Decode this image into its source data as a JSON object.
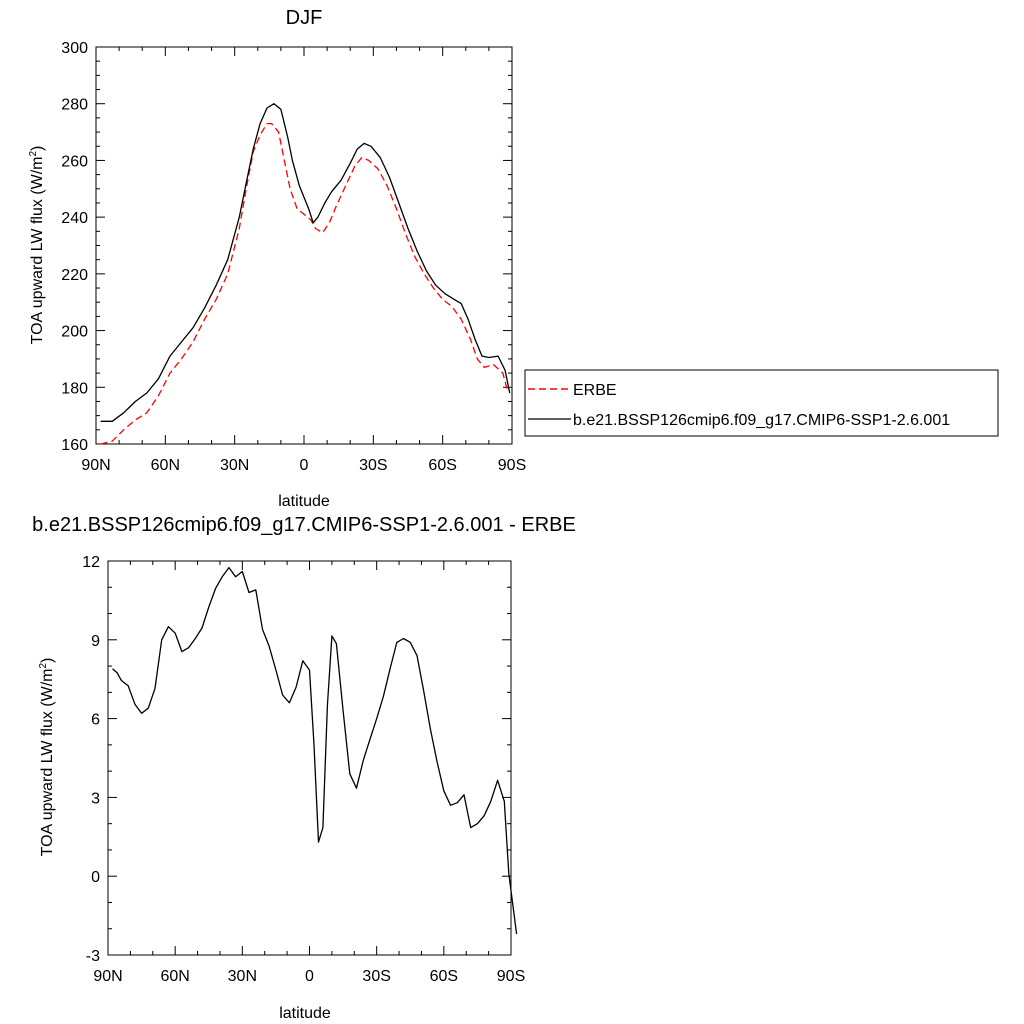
{
  "chart_data": [
    {
      "type": "line",
      "title": "DJF",
      "xlabel": "latitude",
      "ylabel": "TOA upward LW flux (W/m",
      "ylabel_sup": "2",
      "ylabel_tail": ")",
      "xlim": [
        -90,
        90
      ],
      "ylim": [
        160,
        300
      ],
      "xticks": [
        -90,
        -60,
        -30,
        0,
        30,
        60,
        90
      ],
      "xticklabels": [
        "90N",
        "60N",
        "30N",
        "0",
        "30S",
        "60S",
        "90S"
      ],
      "yticks": [
        160,
        180,
        200,
        220,
        240,
        260,
        280,
        300
      ],
      "yticklabels": [
        "160",
        "180",
        "200",
        "220",
        "240",
        "260",
        "280",
        "300"
      ],
      "legend": "right",
      "series": [
        {
          "name": "ERBE",
          "color": "#ff0000",
          "dash": "dashed",
          "points": [
            [
              -88,
              160
            ],
            [
              -83,
              161
            ],
            [
              -78,
              165
            ],
            [
              -73,
              168.5
            ],
            [
              -68,
              171
            ],
            [
              -63,
              177
            ],
            [
              -58,
              185
            ],
            [
              -53,
              190
            ],
            [
              -48,
              196
            ],
            [
              -43,
              204
            ],
            [
              -38,
              211
            ],
            [
              -33,
              220
            ],
            [
              -28,
              236
            ],
            [
              -25,
              250
            ],
            [
              -22,
              263
            ],
            [
              -19,
              269
            ],
            [
              -16,
              273
            ],
            [
              -14,
              273
            ],
            [
              -11,
              270
            ],
            [
              -8,
              258
            ],
            [
              -6,
              250
            ],
            [
              -3,
              243
            ],
            [
              0,
              241
            ],
            [
              3,
              239
            ],
            [
              5,
              236
            ],
            [
              8,
              234.5
            ],
            [
              11,
              238
            ],
            [
              14,
              244
            ],
            [
              18,
              251
            ],
            [
              22,
              258
            ],
            [
              25,
              261
            ],
            [
              28,
              260
            ],
            [
              32,
              257
            ],
            [
              36,
              251
            ],
            [
              40,
              243
            ],
            [
              44,
              234
            ],
            [
              48,
              226
            ],
            [
              52,
              220
            ],
            [
              56,
              215
            ],
            [
              60,
              211
            ],
            [
              64,
              208.5
            ],
            [
              68,
              204
            ],
            [
              72,
              197
            ],
            [
              75,
              190
            ],
            [
              78,
              187
            ],
            [
              82,
              188
            ],
            [
              86,
              185
            ],
            [
              88,
              179
            ]
          ]
        },
        {
          "name": "b.e21.BSSP126cmip6.f09_g17.CMIP6-SSP1-2.6.001",
          "color": "#000000",
          "dash": "solid",
          "points": [
            [
              -88,
              168
            ],
            [
              -83,
              168
            ],
            [
              -78,
              171
            ],
            [
              -73,
              175
            ],
            [
              -68,
              178
            ],
            [
              -63,
              183
            ],
            [
              -58,
              191
            ],
            [
              -53,
              196
            ],
            [
              -48,
              201
            ],
            [
              -43,
              208
            ],
            [
              -38,
              216
            ],
            [
              -33,
              225
            ],
            [
              -28,
              240
            ],
            [
              -25,
              252
            ],
            [
              -22,
              264
            ],
            [
              -19,
              273
            ],
            [
              -16,
              278.5
            ],
            [
              -13,
              280
            ],
            [
              -10,
              278
            ],
            [
              -7,
              268
            ],
            [
              -5,
              260
            ],
            [
              -2,
              251
            ],
            [
              0,
              247
            ],
            [
              2,
              243
            ],
            [
              4,
              238
            ],
            [
              6,
              240
            ],
            [
              9,
              245
            ],
            [
              12,
              249
            ],
            [
              16,
              253
            ],
            [
              20,
              259
            ],
            [
              23,
              264
            ],
            [
              26,
              266
            ],
            [
              29,
              265
            ],
            [
              33,
              261
            ],
            [
              37,
              254
            ],
            [
              41,
              245
            ],
            [
              45,
              236
            ],
            [
              49,
              228
            ],
            [
              53,
              221
            ],
            [
              57,
              216
            ],
            [
              61,
              213
            ],
            [
              65,
              211
            ],
            [
              68,
              209.5
            ],
            [
              71,
              204
            ],
            [
              74,
              197
            ],
            [
              77,
              191
            ],
            [
              80,
              190.5
            ],
            [
              84,
              191
            ],
            [
              87,
              186
            ],
            [
              89,
              178
            ]
          ]
        }
      ]
    },
    {
      "type": "line",
      "title": "b.e21.BSSP126cmip6.f09_g17.CMIP6-SSP1-2.6.001 - ERBE",
      "xlabel": "latitude",
      "ylabel": "TOA upward LW flux (W/m",
      "ylabel_sup": "2",
      "ylabel_tail": ")",
      "xlim": [
        -90,
        90
      ],
      "ylim": [
        -3,
        12
      ],
      "xticks": [
        -90,
        -60,
        -30,
        0,
        30,
        60,
        90
      ],
      "xticklabels": [
        "90N",
        "60N",
        "30N",
        "0",
        "30S",
        "60S",
        "90S"
      ],
      "yticks": [
        -3,
        0,
        3,
        6,
        9,
        12
      ],
      "yticklabels": [
        "-3",
        "0",
        "3",
        "6",
        "9",
        "12"
      ],
      "series": [
        {
          "color": "#000000",
          "dash": "solid",
          "points": [
            [
              -88,
              7.9
            ],
            [
              -86,
              7.75
            ],
            [
              -84,
              7.45
            ],
            [
              -81,
              7.25
            ],
            [
              -78,
              6.55
            ],
            [
              -75,
              6.2
            ],
            [
              -72,
              6.4
            ],
            [
              -69,
              7.15
            ],
            [
              -66,
              9.0
            ],
            [
              -63,
              9.5
            ],
            [
              -60,
              9.25
            ],
            [
              -57,
              8.55
            ],
            [
              -54,
              8.7
            ],
            [
              -51,
              9.05
            ],
            [
              -48,
              9.45
            ],
            [
              -45,
              10.25
            ],
            [
              -42,
              10.95
            ],
            [
              -39,
              11.4
            ],
            [
              -36,
              11.75
            ],
            [
              -33,
              11.4
            ],
            [
              -30,
              11.6
            ],
            [
              -27,
              10.8
            ],
            [
              -24,
              10.9
            ],
            [
              -21,
              9.4
            ],
            [
              -18,
              8.75
            ],
            [
              -15,
              7.85
            ],
            [
              -12,
              6.9
            ],
            [
              -9,
              6.6
            ],
            [
              -6,
              7.2
            ],
            [
              -3,
              8.2
            ],
            [
              0,
              7.85
            ],
            [
              2,
              5.0
            ],
            [
              4,
              1.3
            ],
            [
              6,
              1.85
            ],
            [
              8,
              6.5
            ],
            [
              10,
              9.15
            ],
            [
              12,
              8.85
            ],
            [
              15,
              6.3
            ],
            [
              18,
              3.9
            ],
            [
              21,
              3.35
            ],
            [
              24,
              4.4
            ],
            [
              27,
              5.2
            ],
            [
              30,
              6.0
            ],
            [
              33,
              6.85
            ],
            [
              36,
              7.9
            ],
            [
              39,
              8.9
            ],
            [
              42,
              9.05
            ],
            [
              45,
              8.9
            ],
            [
              48,
              8.4
            ],
            [
              51,
              7.05
            ],
            [
              54,
              5.6
            ],
            [
              57,
              4.35
            ],
            [
              60,
              3.25
            ],
            [
              63,
              2.7
            ],
            [
              66,
              2.8
            ],
            [
              69,
              3.1
            ],
            [
              72,
              1.85
            ],
            [
              75,
              2.0
            ],
            [
              78,
              2.3
            ],
            [
              81,
              2.85
            ],
            [
              84,
              3.65
            ],
            [
              87,
              2.85
            ],
            [
              89,
              0.1
            ],
            [
              91,
              -1.2
            ],
            [
              92.5,
              -2.2
            ]
          ]
        }
      ]
    }
  ]
}
